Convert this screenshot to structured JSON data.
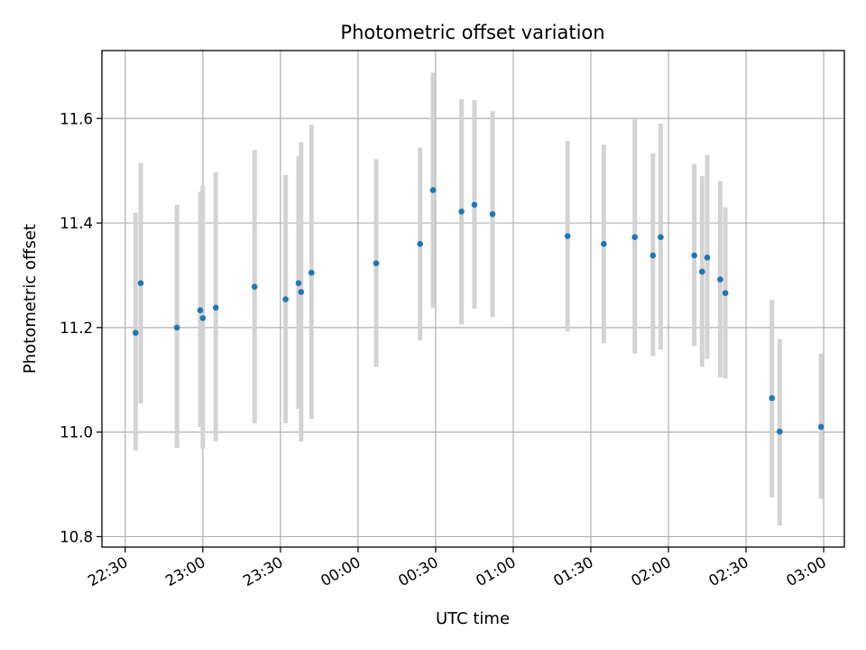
{
  "chart_data": {
    "type": "scatter",
    "title": "Photometric offset variation",
    "xlabel": "UTC time",
    "ylabel": "Photometric offset",
    "xlim": [
      "22:21",
      "03:08"
    ],
    "ylim": [
      10.78,
      11.73
    ],
    "xticks": [
      "22:30",
      "23:00",
      "23:30",
      "00:00",
      "00:30",
      "01:00",
      "01:30",
      "02:00",
      "02:30",
      "03:00"
    ],
    "yticks": [
      10.8,
      11.0,
      11.2,
      11.4,
      11.6
    ],
    "grid": true,
    "colors": {
      "point": "#1f77b4",
      "errorbar": "#d3d3d3"
    },
    "points": [
      {
        "x": "22:34",
        "y": 11.19,
        "err_low": 10.965,
        "err_high": 11.42
      },
      {
        "x": "22:36",
        "y": 11.285,
        "err_low": 11.055,
        "err_high": 11.515
      },
      {
        "x": "22:50",
        "y": 11.2,
        "err_low": 10.97,
        "err_high": 11.435
      },
      {
        "x": "22:59",
        "y": 11.233,
        "err_low": 11.01,
        "err_high": 11.46
      },
      {
        "x": "23:00",
        "y": 11.218,
        "err_low": 10.968,
        "err_high": 11.472
      },
      {
        "x": "23:05",
        "y": 11.238,
        "err_low": 10.982,
        "err_high": 11.497
      },
      {
        "x": "23:20",
        "y": 11.278,
        "err_low": 11.017,
        "err_high": 11.54
      },
      {
        "x": "23:32",
        "y": 11.254,
        "err_low": 11.017,
        "err_high": 11.492
      },
      {
        "x": "23:37",
        "y": 11.285,
        "err_low": 11.044,
        "err_high": 11.528
      },
      {
        "x": "23:38",
        "y": 11.268,
        "err_low": 10.982,
        "err_high": 11.555
      },
      {
        "x": "23:42",
        "y": 11.305,
        "err_low": 11.025,
        "err_high": 11.588
      },
      {
        "x": "00:07",
        "y": 11.323,
        "err_low": 11.125,
        "err_high": 11.522
      },
      {
        "x": "00:24",
        "y": 11.36,
        "err_low": 11.175,
        "err_high": 11.545
      },
      {
        "x": "00:29",
        "y": 11.463,
        "err_low": 11.238,
        "err_high": 11.688
      },
      {
        "x": "00:40",
        "y": 11.422,
        "err_low": 11.206,
        "err_high": 11.637
      },
      {
        "x": "00:45",
        "y": 11.435,
        "err_low": 11.236,
        "err_high": 11.635
      },
      {
        "x": "00:52",
        "y": 11.417,
        "err_low": 11.22,
        "err_high": 11.614
      },
      {
        "x": "01:21",
        "y": 11.375,
        "err_low": 11.193,
        "err_high": 11.557
      },
      {
        "x": "01:35",
        "y": 11.36,
        "err_low": 11.17,
        "err_high": 11.55
      },
      {
        "x": "01:47",
        "y": 11.373,
        "err_low": 11.15,
        "err_high": 11.598
      },
      {
        "x": "01:54",
        "y": 11.338,
        "err_low": 11.145,
        "err_high": 11.533
      },
      {
        "x": "01:57",
        "y": 11.373,
        "err_low": 11.158,
        "err_high": 11.59
      },
      {
        "x": "02:10",
        "y": 11.338,
        "err_low": 11.165,
        "err_high": 11.513
      },
      {
        "x": "02:13",
        "y": 11.307,
        "err_low": 11.125,
        "err_high": 11.49
      },
      {
        "x": "02:15",
        "y": 11.334,
        "err_low": 11.14,
        "err_high": 11.53
      },
      {
        "x": "02:20",
        "y": 11.292,
        "err_low": 11.105,
        "err_high": 11.48
      },
      {
        "x": "02:22",
        "y": 11.266,
        "err_low": 11.103,
        "err_high": 11.43
      },
      {
        "x": "02:40",
        "y": 11.065,
        "err_low": 10.875,
        "err_high": 11.253
      },
      {
        "x": "02:43",
        "y": 11.001,
        "err_low": 10.821,
        "err_high": 11.178
      },
      {
        "x": "02:59",
        "y": 11.01,
        "err_low": 10.872,
        "err_high": 11.15
      }
    ]
  }
}
